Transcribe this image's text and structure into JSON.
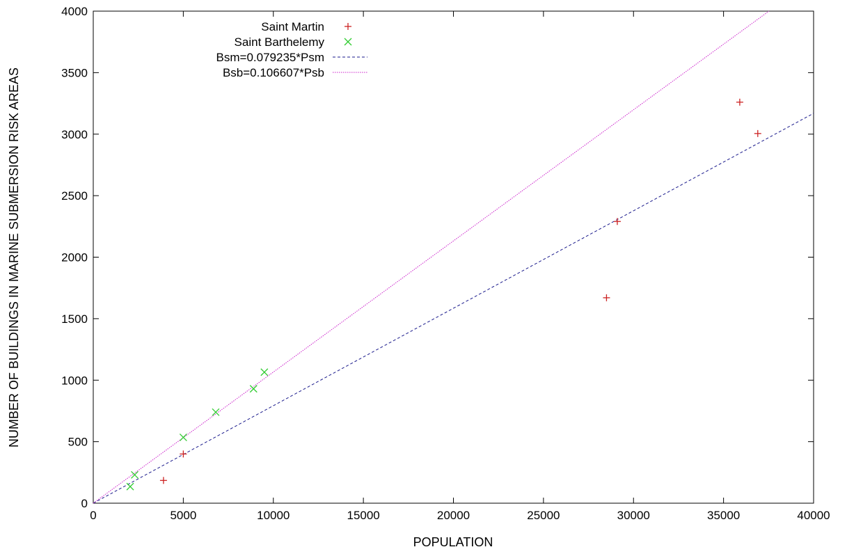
{
  "chart_data": {
    "type": "scatter",
    "xlabel": "POPULATION",
    "ylabel": "NUMBER OF BUILDINGS IN MARINE SUBMERSION RISK AREAS",
    "xlim": [
      0,
      40000
    ],
    "ylim": [
      0,
      4000
    ],
    "x_ticks": [
      0,
      5000,
      10000,
      15000,
      20000,
      25000,
      30000,
      35000,
      40000
    ],
    "y_ticks": [
      0,
      500,
      1000,
      1500,
      2000,
      2500,
      3000,
      3500,
      4000
    ],
    "grid": false,
    "legend_position": "top-left",
    "series": [
      {
        "name": "Saint Martin",
        "kind": "points",
        "marker": "plus",
        "color": "#cc2222",
        "points": [
          {
            "x": 3900,
            "y": 185
          },
          {
            "x": 5000,
            "y": 400
          },
          {
            "x": 28500,
            "y": 1670
          },
          {
            "x": 29100,
            "y": 2290
          },
          {
            "x": 35900,
            "y": 3260
          },
          {
            "x": 36900,
            "y": 3005
          }
        ]
      },
      {
        "name": "Saint Barthelemy",
        "kind": "points",
        "marker": "cross",
        "color": "#33cc33",
        "points": [
          {
            "x": 2050,
            "y": 135
          },
          {
            "x": 2300,
            "y": 230
          },
          {
            "x": 5000,
            "y": 535
          },
          {
            "x": 6800,
            "y": 740
          },
          {
            "x": 8900,
            "y": 930
          },
          {
            "x": 9500,
            "y": 1065
          }
        ]
      },
      {
        "name": "Bsm=0.079235*Psm",
        "kind": "line",
        "slope": 0.079235,
        "dash": "dashed",
        "color": "#1a1a8c"
      },
      {
        "name": "Bsb=0.106607*Psb",
        "kind": "line",
        "slope": 0.106607,
        "dash": "dotted",
        "color": "#cc22cc"
      }
    ]
  }
}
